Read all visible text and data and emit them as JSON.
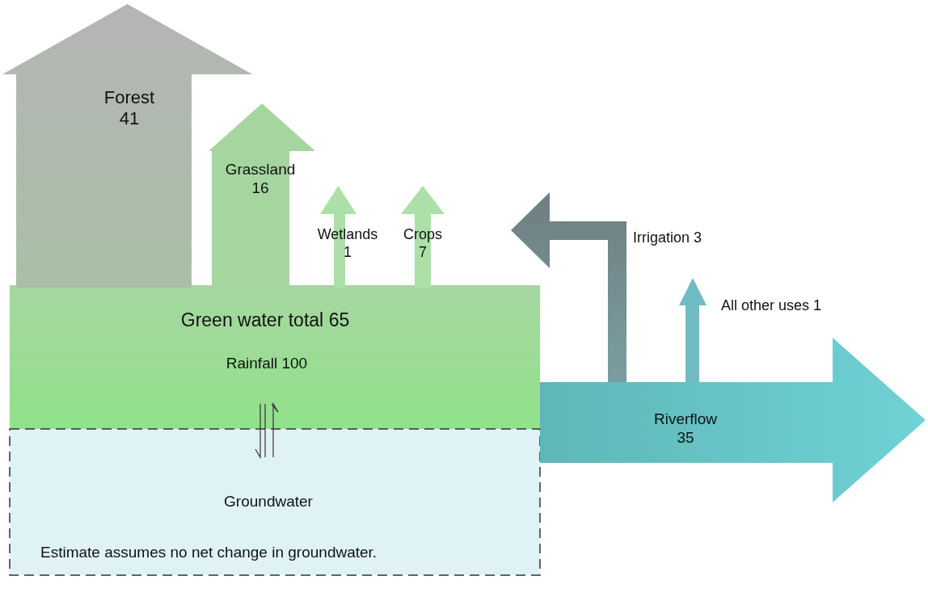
{
  "chart_data": {
    "type": "other",
    "categories": [
      "Forest",
      "Grassland",
      "Wetlands",
      "Crops",
      "Green water total",
      "Rainfall",
      "Riverflow",
      "Irrigation",
      "All other uses",
      "Groundwater"
    ],
    "values": [
      41,
      16,
      1,
      7,
      65,
      100,
      35,
      3,
      1,
      null
    ],
    "data_labels": true,
    "colors": [
      "#a9bfa6",
      "#a6d6a0",
      "#ace0a8",
      "#ace0a8",
      "#a6d6a0",
      "#90e28a",
      "#6fd2d6",
      "#7a9ea0",
      "#6fbcc4",
      "#dff3f6"
    ],
    "annotations": [
      "Estimate assumes no net change in groundwater."
    ]
  }
}
